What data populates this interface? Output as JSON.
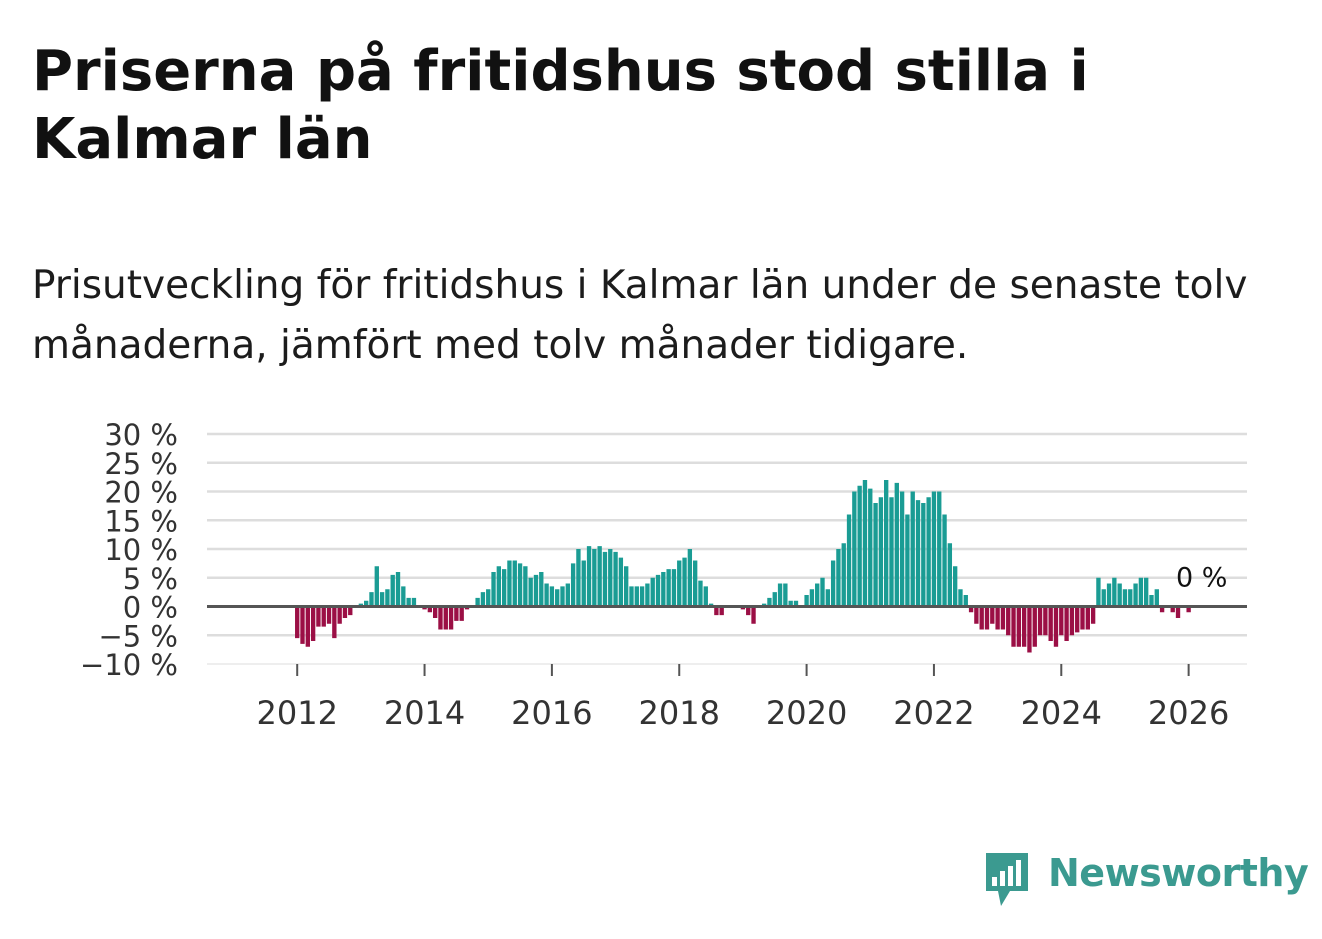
{
  "header": {
    "title": "Priserna på fritidshus stod stilla i Kalmar län",
    "subtitle": "Prisutveckling för fritidshus i Kalmar län under de senaste tolv månaderna, jämfört med tolv månader tidigare."
  },
  "brand": {
    "name": "Newsworthy",
    "icon": "newsworthy-logo-icon",
    "color": "#3b9a90"
  },
  "chart_data": {
    "type": "bar",
    "title": "",
    "xlabel": "",
    "ylabel": "",
    "x_ticks": [
      "2012",
      "2014",
      "2016",
      "2018",
      "2020",
      "2022",
      "2024",
      "2026"
    ],
    "y_ticks": [
      "30 %",
      "25 %",
      "20 %",
      "15 %",
      "10 %",
      "5 %",
      "0 %",
      "−5 %",
      "−10 %"
    ],
    "y_tick_values": [
      30,
      25,
      20,
      15,
      10,
      5,
      0,
      -5,
      -10
    ],
    "ylim": [
      -10,
      30
    ],
    "xlim": [
      "2010-08",
      "2026-12"
    ],
    "grid": true,
    "colors": {
      "positive": "#1a9c94",
      "negative": "#9b0f45",
      "zero_line": "#555555",
      "grid": "#dddddd"
    },
    "last_value_label": "0 %",
    "series": [
      {
        "start": "2012-01",
        "frequency": "monthly",
        "values": [
          -5.5,
          -6.5,
          -7,
          -6,
          -3.5,
          -3.5,
          -3,
          -5.5,
          -3,
          -2,
          -1.5,
          0,
          0.5,
          1,
          2.5,
          7,
          2.5,
          3,
          5.5,
          6,
          3.5,
          1.5,
          1.5,
          0,
          -0.5,
          -1,
          -2,
          -4,
          -4,
          -4,
          -2.5,
          -2.5,
          -0.5,
          0,
          1.5,
          2.5,
          3,
          6,
          7,
          6.5,
          8,
          8,
          7.5,
          7,
          5,
          5.5,
          6,
          4,
          3.5,
          3,
          3.5,
          4,
          7.5,
          10,
          8,
          10.5,
          10,
          10.5,
          9.5,
          10,
          9.5,
          8.5,
          7,
          3.5,
          3.5,
          3.5,
          4,
          5,
          5.5,
          6,
          6.5,
          6.5,
          8,
          8.5,
          10,
          8,
          4.5,
          3.5,
          0.5,
          -1.5,
          -1.5,
          0,
          0,
          0,
          -0.5,
          -1.5,
          -3,
          0,
          0.5,
          1.5,
          2.5,
          4,
          4,
          1,
          1,
          0,
          2,
          3,
          4,
          5,
          3,
          8,
          10,
          11,
          16,
          20,
          21,
          22,
          20.5,
          18,
          19,
          22,
          19,
          21.5,
          20,
          16,
          20,
          18.5,
          18,
          19,
          20,
          20,
          16,
          11,
          7,
          3,
          2,
          -1,
          -3,
          -4,
          -4,
          -3,
          -4,
          -4,
          -5,
          -7,
          -7,
          -7,
          -8,
          -7,
          -5,
          -5,
          -6,
          -7,
          -5,
          -6,
          -5,
          -4.5,
          -4,
          -4,
          -3,
          5,
          3,
          4,
          5,
          4,
          3,
          3,
          4,
          5,
          5,
          2,
          3,
          -1,
          0,
          -1,
          -2,
          0,
          -1,
          0
        ]
      }
    ]
  }
}
